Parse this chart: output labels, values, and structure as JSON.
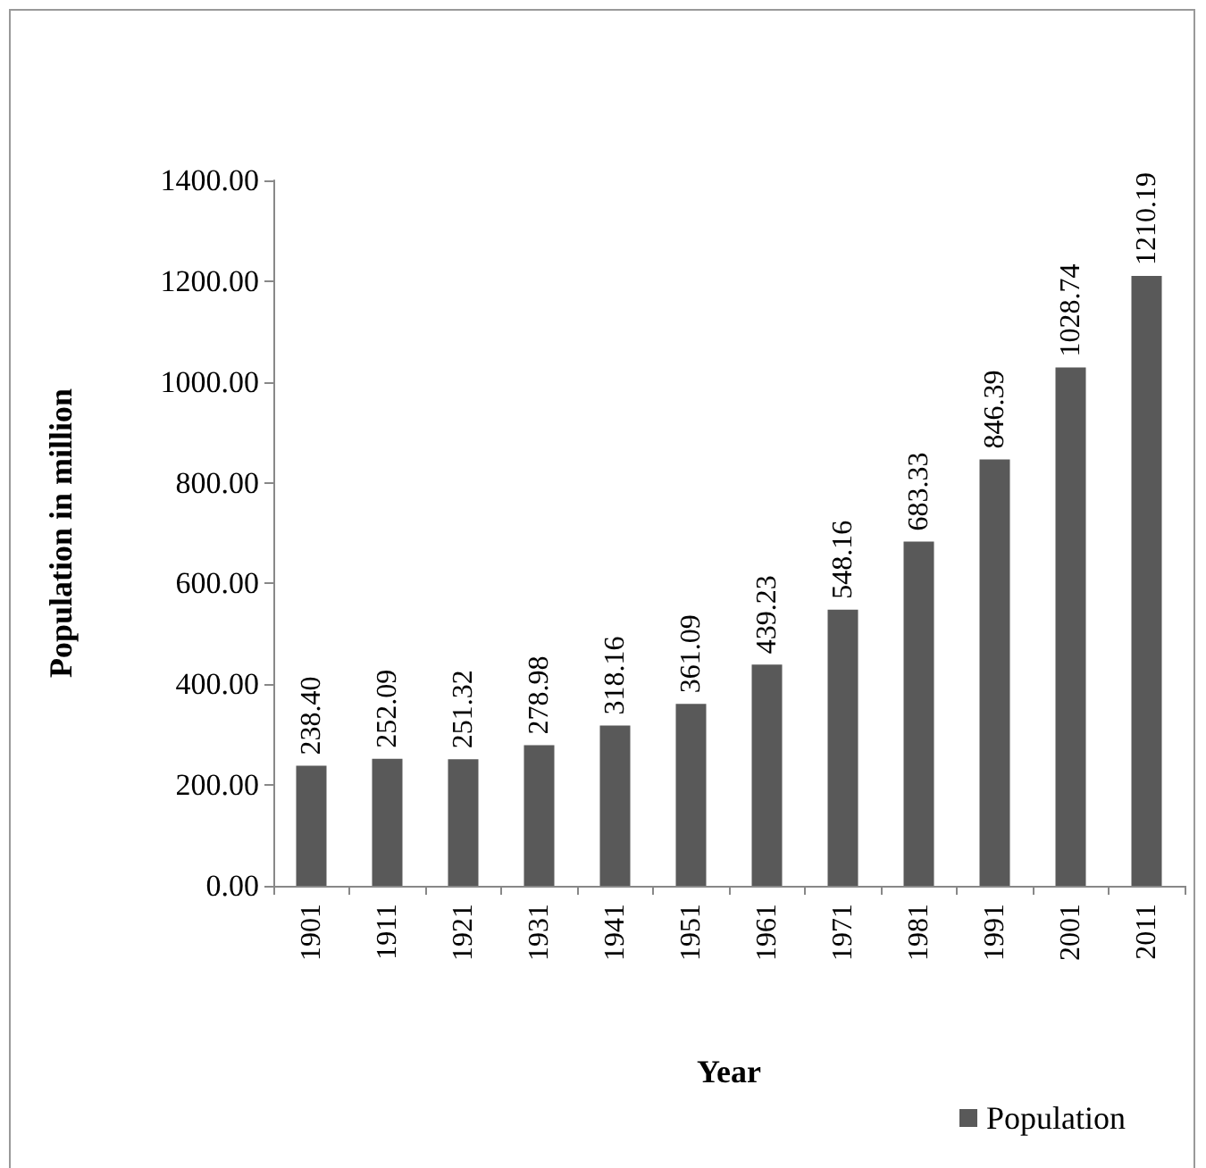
{
  "chart_data": {
    "type": "bar",
    "xlabel": "Year",
    "ylabel": "Population in million",
    "categories": [
      "1901",
      "1911",
      "1921",
      "1931",
      "1941",
      "1951",
      "1961",
      "1971",
      "1981",
      "1991",
      "2001",
      "2011"
    ],
    "series": [
      {
        "name": "Population",
        "color": "#595959",
        "values": [
          238.4,
          252.09,
          251.32,
          278.98,
          318.16,
          361.09,
          439.23,
          548.16,
          683.33,
          846.39,
          1028.74,
          1210.19
        ],
        "value_labels": [
          "238.40",
          "252.09",
          "251.32",
          "278.98",
          "318.16",
          "361.09",
          "439.23",
          "548.16",
          "683.33",
          "846.39",
          "1028.74",
          "1210.19"
        ]
      }
    ],
    "ylim": [
      0,
      1400
    ],
    "yticks": [
      {
        "value": 0,
        "label": "0.00"
      },
      {
        "value": 200,
        "label": "200.00"
      },
      {
        "value": 400,
        "label": "400.00"
      },
      {
        "value": 600,
        "label": "600.00"
      },
      {
        "value": 800,
        "label": "800.00"
      },
      {
        "value": 1000,
        "label": "1000.00"
      },
      {
        "value": 1200,
        "label": "1200.00"
      },
      {
        "value": 1400,
        "label": "1400.00"
      }
    ],
    "grid": false,
    "legend": "bottom right"
  }
}
